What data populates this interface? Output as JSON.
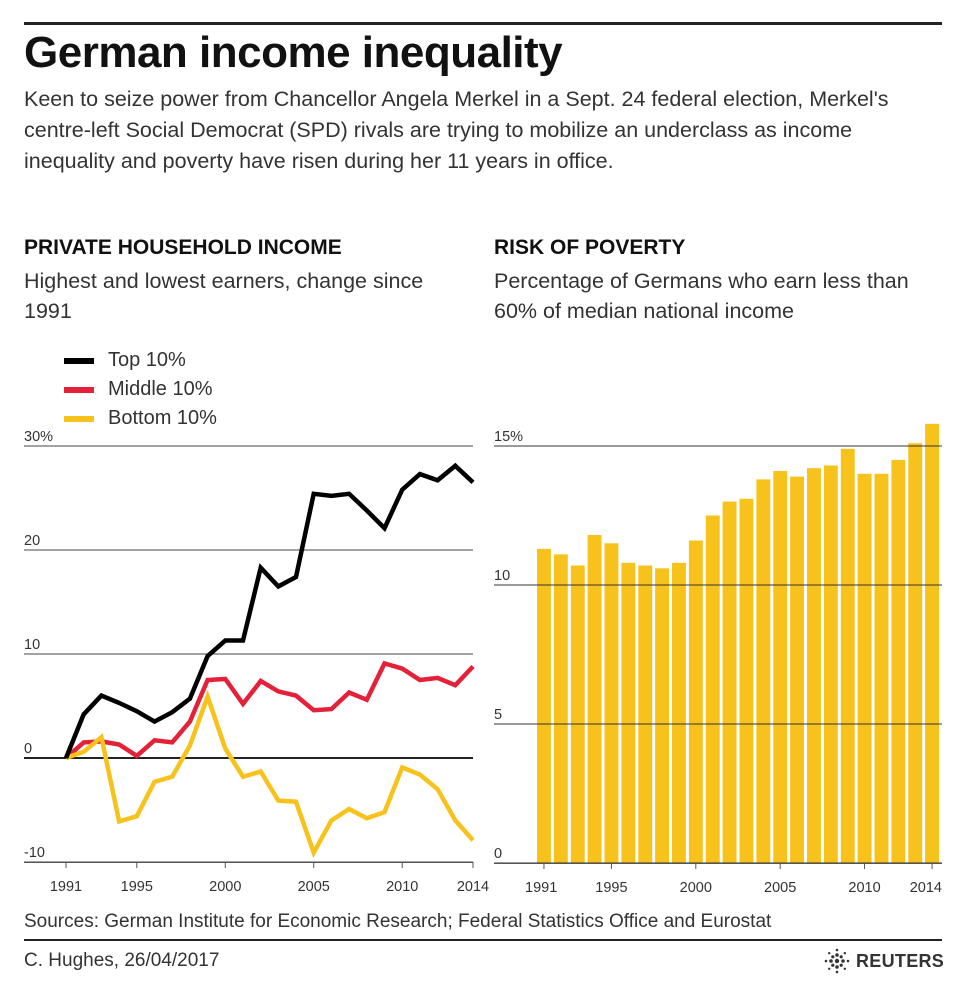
{
  "title": "German income inequality",
  "intro": "Keen to seize power from Chancellor Angela Merkel in a Sept. 24 federal election, Merkel's centre-left Social Democrat (SPD) rivals are trying to mobilize an underclass as income inequality and poverty have risen during her 11 years in office.",
  "left_panel": {
    "heading": "PRIVATE HOUSEHOLD INCOME",
    "subtitle": "Highest and lowest earners, change since 1991"
  },
  "right_panel": {
    "heading": "RISK OF POVERTY",
    "subtitle": "Percentage of Germans who earn less than 60% of median national income"
  },
  "legend": [
    {
      "label": "Top 10%",
      "color": "#000000"
    },
    {
      "label": "Middle 10%",
      "color": "#e5213a"
    },
    {
      "label": "Bottom 10%",
      "color": "#f8c21c"
    }
  ],
  "footer": {
    "sources": "Sources: German Institute for Economic Research; Federal Statistics Office and Eurostat",
    "credit": "C. Hughes, 26/04/2017",
    "brand": "REUTERS"
  },
  "chart_data": [
    {
      "type": "line",
      "title": "PRIVATE HOUSEHOLD INCOME",
      "subtitle": "Highest and lowest earners, change since 1991",
      "x": [
        1991,
        1992,
        1993,
        1994,
        1995,
        1996,
        1997,
        1998,
        1999,
        2000,
        2001,
        2002,
        2003,
        2004,
        2005,
        2006,
        2007,
        2008,
        2009,
        2010,
        2011,
        2012,
        2013,
        2014
      ],
      "series": [
        {
          "name": "Top 10%",
          "color": "#000000",
          "values": [
            0,
            4.2,
            6,
            5.3,
            4.5,
            3.5,
            4.4,
            5.7,
            9.8,
            11.3,
            11.3,
            18.3,
            16.5,
            17.4,
            25.4,
            25.2,
            25.4,
            23.8,
            22.1,
            25.8,
            27.3,
            26.7,
            28.1,
            26.5
          ]
        },
        {
          "name": "Middle 10%",
          "color": "#e5213a",
          "values": [
            0,
            1.5,
            1.6,
            1.3,
            0.2,
            1.7,
            1.5,
            3.5,
            7.5,
            7.6,
            5.2,
            7.4,
            6.4,
            6,
            4.6,
            4.7,
            6.3,
            5.6,
            9.1,
            8.6,
            7.5,
            7.7,
            7,
            8.8
          ]
        },
        {
          "name": "Bottom 10%",
          "color": "#f8c21c",
          "values": [
            0,
            0.6,
            2,
            -6.1,
            -5.6,
            -2.3,
            -1.8,
            1.2,
            5.9,
            0.9,
            -1.8,
            -1.3,
            -4.1,
            -4.2,
            -9.1,
            -6,
            -4.9,
            -5.8,
            -5.2,
            -0.9,
            -1.6,
            -3,
            -6,
            -7.9
          ]
        }
      ],
      "ylim": [
        -10,
        30
      ],
      "yticks": [
        30,
        20,
        10,
        0,
        -10
      ],
      "ytick_labels": [
        "30%",
        "20",
        "10",
        "0",
        "-10"
      ],
      "xticks": [
        1991,
        1995,
        2000,
        2005,
        2010,
        2014
      ],
      "legend_position": "top-left"
    },
    {
      "type": "bar",
      "title": "RISK OF POVERTY",
      "subtitle": "Percentage of Germans who earn less than 60% of median national income",
      "categories": [
        1991,
        1992,
        1993,
        1994,
        1995,
        1996,
        1997,
        1998,
        1999,
        2000,
        2001,
        2002,
        2003,
        2004,
        2005,
        2006,
        2007,
        2008,
        2009,
        2010,
        2011,
        2012,
        2013,
        2014
      ],
      "values": [
        11.3,
        11.1,
        10.7,
        11.8,
        11.5,
        10.8,
        10.7,
        10.6,
        10.8,
        11.6,
        12.5,
        13,
        13.1,
        13.8,
        14.1,
        13.9,
        14.2,
        14.3,
        14.9,
        14,
        14,
        14.5,
        15.1,
        15.8
      ],
      "color": "#f8c21c",
      "ylim": [
        0,
        15.8
      ],
      "yticks": [
        15,
        10,
        5,
        0
      ],
      "ytick_labels": [
        "15%",
        "10",
        "5",
        "0"
      ],
      "xticks": [
        1991,
        1995,
        2000,
        2005,
        2010,
        2014
      ]
    }
  ]
}
